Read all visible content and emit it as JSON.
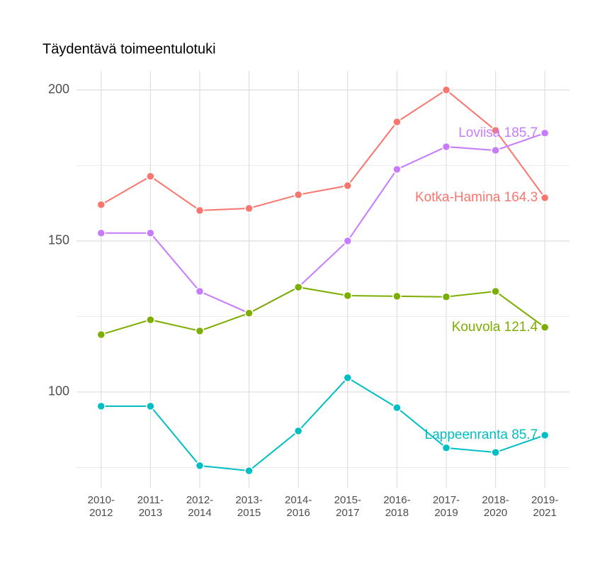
{
  "chart_data": {
    "type": "line",
    "title": "Täydentävä toimeentulotuki",
    "categories": [
      "2010-2012",
      "2011-2013",
      "2012-2014",
      "2013-2015",
      "2014-2016",
      "2015-2017",
      "2016-2018",
      "2017-2019",
      "2018-2020",
      "2019-2021"
    ],
    "series": [
      {
        "name": "Kotka-Hamina",
        "color": "#F8766D",
        "values": [
          162.0,
          171.4,
          160.1,
          160.8,
          165.3,
          168.3,
          189.4,
          200.0,
          186.6,
          164.3
        ],
        "value_labels": [
          null,
          null,
          null,
          null,
          null,
          null,
          null,
          null,
          null,
          "Kotka-Hamina 164.3"
        ]
      },
      {
        "name": "Loviisa",
        "color": "#C77CFF",
        "values": [
          152.6,
          152.6,
          133.3,
          126.1,
          134.7,
          150.0,
          173.7,
          181.2,
          180.0,
          185.7
        ],
        "value_labels": [
          null,
          null,
          null,
          null,
          null,
          null,
          null,
          null,
          null,
          "Loviisa 185.7"
        ]
      },
      {
        "name": "Kouvola",
        "color": "#7CAE00",
        "values": [
          119.0,
          123.9,
          120.2,
          126.1,
          134.7,
          131.9,
          131.7,
          131.5,
          133.3,
          121.4
        ],
        "value_labels": [
          null,
          null,
          null,
          null,
          null,
          null,
          null,
          null,
          null,
          "Kouvola 121.4"
        ]
      },
      {
        "name": "Lappeenranta",
        "color": "#00BFC4",
        "values": [
          95.3,
          95.3,
          75.6,
          73.9,
          87.1,
          104.7,
          94.8,
          81.5,
          80.0,
          85.7
        ],
        "value_labels": [
          null,
          null,
          null,
          null,
          null,
          null,
          null,
          null,
          null,
          "Lappeenranta 85.7"
        ]
      }
    ],
    "ylim": [
      68.3,
      206.3
    ],
    "yticks": [
      100,
      150,
      200
    ],
    "minor_yticks": [
      75,
      125,
      175
    ],
    "grid": true
  }
}
